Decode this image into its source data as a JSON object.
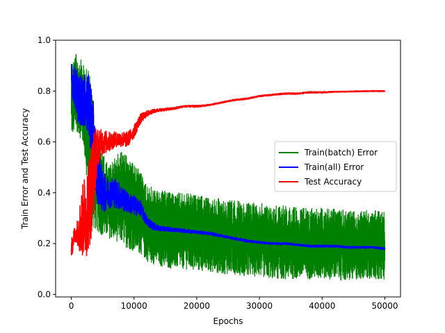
{
  "chart_data": {
    "type": "line",
    "xlabel": "Epochs",
    "ylabel": "Train Error and Test Accuracy",
    "xlim": [
      -2500,
      52500
    ],
    "ylim": [
      -0.01,
      1.0
    ],
    "xticks": [
      0,
      10000,
      20000,
      30000,
      40000,
      50000
    ],
    "yticks": [
      0.0,
      0.2,
      0.4,
      0.6,
      0.8,
      1.0
    ],
    "xtick_labels": [
      "0",
      "10000",
      "20000",
      "30000",
      "40000",
      "50000"
    ],
    "ytick_labels": [
      "0.0",
      "0.2",
      "0.4",
      "0.6",
      "0.8",
      "1.0"
    ],
    "grid": false,
    "legend_position": "center-right",
    "series": [
      {
        "name": "Train(batch) Error",
        "color": "#008000",
        "x": [
          0,
          1000,
          2000,
          3000,
          4000,
          5000,
          6000,
          7000,
          8000,
          9000,
          10000,
          11000,
          12000,
          14000,
          16000,
          18000,
          20000,
          22000,
          24000,
          26000,
          28000,
          30000,
          32000,
          34000,
          36000,
          38000,
          40000,
          42000,
          44000,
          46000,
          48000,
          50000
        ],
        "mean": [
          0.82,
          0.83,
          0.8,
          0.68,
          0.48,
          0.4,
          0.36,
          0.37,
          0.36,
          0.35,
          0.33,
          0.3,
          0.27,
          0.25,
          0.24,
          0.24,
          0.24,
          0.23,
          0.22,
          0.21,
          0.2,
          0.2,
          0.19,
          0.19,
          0.19,
          0.19,
          0.19,
          0.18,
          0.18,
          0.18,
          0.18,
          0.18
        ],
        "low": [
          0.62,
          0.64,
          0.58,
          0.26,
          0.25,
          0.23,
          0.22,
          0.21,
          0.2,
          0.18,
          0.17,
          0.16,
          0.13,
          0.11,
          0.1,
          0.1,
          0.09,
          0.09,
          0.08,
          0.08,
          0.07,
          0.07,
          0.06,
          0.06,
          0.06,
          0.06,
          0.06,
          0.06,
          0.05,
          0.06,
          0.06,
          0.06
        ],
        "high": [
          0.93,
          0.95,
          0.9,
          0.88,
          0.62,
          0.56,
          0.5,
          0.54,
          0.57,
          0.54,
          0.51,
          0.49,
          0.43,
          0.41,
          0.4,
          0.4,
          0.39,
          0.38,
          0.38,
          0.37,
          0.36,
          0.36,
          0.35,
          0.35,
          0.34,
          0.34,
          0.34,
          0.34,
          0.33,
          0.33,
          0.33,
          0.33
        ]
      },
      {
        "name": "Train(all) Error",
        "color": "#0000ff",
        "x": [
          0,
          500,
          1000,
          1500,
          2000,
          2500,
          3000,
          3500,
          4000,
          4500,
          5000,
          6000,
          7000,
          8000,
          9000,
          10000,
          11000,
          12000,
          13000,
          14000,
          16000,
          18000,
          20000,
          22000,
          24000,
          26000,
          28000,
          30000,
          32000,
          34000,
          36000,
          38000,
          40000,
          42000,
          44000,
          46000,
          48000,
          50000
        ],
        "mean": [
          0.85,
          0.82,
          0.78,
          0.76,
          0.76,
          0.75,
          0.72,
          0.62,
          0.48,
          0.45,
          0.4,
          0.4,
          0.4,
          0.38,
          0.36,
          0.35,
          0.34,
          0.29,
          0.27,
          0.26,
          0.255,
          0.25,
          0.245,
          0.24,
          0.23,
          0.22,
          0.21,
          0.205,
          0.2,
          0.2,
          0.195,
          0.19,
          0.19,
          0.19,
          0.185,
          0.185,
          0.185,
          0.18
        ],
        "spread": [
          0.06,
          0.08,
          0.1,
          0.1,
          0.1,
          0.12,
          0.14,
          0.14,
          0.12,
          0.1,
          0.08,
          0.06,
          0.06,
          0.05,
          0.04,
          0.04,
          0.03,
          0.02,
          0.015,
          0.01,
          0.008,
          0.007,
          0.006,
          0.006,
          0.005,
          0.005,
          0.005,
          0.004,
          0.004,
          0.004,
          0.004,
          0.004,
          0.004,
          0.004,
          0.004,
          0.004,
          0.004,
          0.004
        ]
      },
      {
        "name": "Test Accuracy",
        "color": "#ff0000",
        "x": [
          0,
          300,
          800,
          1500,
          2000,
          2500,
          3000,
          3500,
          4000,
          4500,
          5000,
          6000,
          7000,
          8000,
          9000,
          10000,
          11000,
          12000,
          13000,
          14000,
          16000,
          18000,
          20000,
          22000,
          24000,
          26000,
          28000,
          30000,
          32000,
          34000,
          36000,
          38000,
          40000,
          42000,
          44000,
          46000,
          48000,
          50000
        ],
        "mean": [
          0.17,
          0.22,
          0.24,
          0.27,
          0.3,
          0.33,
          0.38,
          0.47,
          0.56,
          0.59,
          0.6,
          0.6,
          0.61,
          0.61,
          0.61,
          0.64,
          0.69,
          0.71,
          0.72,
          0.725,
          0.73,
          0.74,
          0.74,
          0.745,
          0.755,
          0.765,
          0.77,
          0.78,
          0.785,
          0.79,
          0.79,
          0.795,
          0.795,
          0.797,
          0.798,
          0.799,
          0.8,
          0.8
        ],
        "spread": [
          0.05,
          0.04,
          0.03,
          0.12,
          0.16,
          0.18,
          0.19,
          0.18,
          0.1,
          0.06,
          0.05,
          0.04,
          0.03,
          0.03,
          0.03,
          0.025,
          0.02,
          0.012,
          0.008,
          0.006,
          0.005,
          0.004,
          0.004,
          0.003,
          0.003,
          0.003,
          0.003,
          0.003,
          0.003,
          0.003,
          0.003,
          0.003,
          0.003,
          0.002,
          0.002,
          0.002,
          0.002,
          0.002
        ]
      }
    ]
  }
}
